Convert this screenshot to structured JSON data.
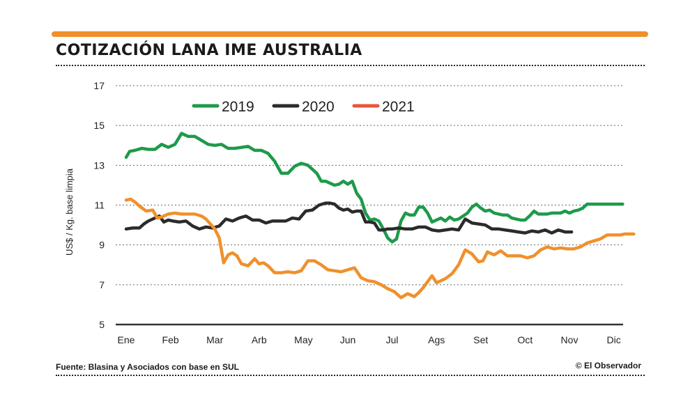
{
  "colors": {
    "accent": "#f0902c",
    "s2019": "#1e9a4a",
    "s2020": "#2b2b2b",
    "s2021": "#f0902c",
    "legend2021": "#e8553a"
  },
  "source": "Fuente: Blasina y Asociados con base en SUL",
  "credit": "© El Observador",
  "chart_data": {
    "type": "line",
    "title": "COTIZACIÓN LANA IME AUSTRALIA",
    "ylabel": "US$ / Kg. base limpia",
    "xlabel": "",
    "ylim": [
      5,
      17
    ],
    "xlim": [
      0,
      11.5
    ],
    "yticks": [
      5,
      7,
      9,
      11,
      13,
      15,
      17
    ],
    "months": [
      "Ene",
      "Feb",
      "Mar",
      "Arb",
      "May",
      "Jun",
      "Jul",
      "Ags",
      "Set",
      "Oct",
      "Nov",
      "Dic"
    ],
    "grid": true,
    "legend_position": "top-center",
    "series": [
      {
        "name": "2019",
        "color_key": "s2019",
        "legend_color_key": "s2019",
        "x": [
          0,
          0.08,
          0.2,
          0.35,
          0.5,
          0.65,
          0.8,
          0.95,
          1.1,
          1.25,
          1.4,
          1.55,
          1.7,
          1.85,
          2.0,
          2.15,
          2.3,
          2.45,
          2.6,
          2.75,
          2.9,
          3.05,
          3.2,
          3.35,
          3.5,
          3.65,
          3.8,
          3.95,
          4.1,
          4.2,
          4.3,
          4.4,
          4.5,
          4.6,
          4.7,
          4.8,
          4.9,
          5.0,
          5.1,
          5.2,
          5.3,
          5.4,
          5.5,
          5.6,
          5.7,
          5.8,
          5.9,
          6.0,
          6.1,
          6.2,
          6.3,
          6.4,
          6.5,
          6.6,
          6.7,
          6.8,
          6.9,
          7.0,
          7.1,
          7.2,
          7.3,
          7.4,
          7.5,
          7.6,
          7.7,
          7.8,
          7.9,
          8.0,
          8.1,
          8.2,
          8.3,
          8.4,
          8.5,
          8.6,
          8.7,
          8.8,
          8.9,
          9.0,
          9.1,
          9.2,
          9.3,
          9.4,
          9.5,
          9.6,
          9.7,
          9.8,
          9.9,
          10.0,
          10.1,
          10.2,
          10.3,
          10.4,
          10.5,
          10.6,
          10.7,
          10.8,
          10.9,
          11.0,
          11.1,
          11.2
        ],
        "values": [
          13.4,
          13.7,
          13.75,
          13.85,
          13.8,
          13.8,
          14.05,
          13.9,
          14.05,
          14.6,
          14.45,
          14.45,
          14.25,
          14.05,
          14.0,
          14.05,
          13.85,
          13.85,
          13.9,
          13.95,
          13.75,
          13.75,
          13.6,
          13.2,
          12.6,
          12.6,
          12.95,
          13.1,
          13.0,
          12.8,
          12.6,
          12.2,
          12.2,
          12.1,
          12.0,
          12.05,
          12.2,
          12.05,
          12.2,
          11.6,
          11.3,
          10.6,
          10.25,
          10.3,
          10.2,
          9.8,
          9.35,
          9.15,
          9.3,
          10.2,
          10.6,
          10.5,
          10.5,
          10.9,
          10.9,
          10.6,
          10.15,
          10.25,
          10.35,
          10.2,
          10.4,
          10.25,
          10.3,
          10.45,
          10.6,
          10.9,
          11.05,
          10.85,
          10.7,
          10.75,
          10.6,
          10.55,
          10.5,
          10.5,
          10.35,
          10.3,
          10.25,
          10.25,
          10.45,
          10.7,
          10.55,
          10.55,
          10.55,
          10.6,
          10.6,
          10.6,
          10.7,
          10.6,
          10.7,
          10.75,
          10.85,
          11.05,
          11.05,
          11.05,
          11.05,
          11.05,
          11.05,
          11.05,
          11.05,
          11.05
        ]
      },
      {
        "name": "2020",
        "color_key": "s2020",
        "legend_color_key": "s2020",
        "x": [
          0,
          0.15,
          0.3,
          0.4,
          0.5,
          0.6,
          0.75,
          0.85,
          0.95,
          1.05,
          1.2,
          1.35,
          1.5,
          1.65,
          1.8,
          1.95,
          2.1,
          2.25,
          2.4,
          2.55,
          2.7,
          2.85,
          3.0,
          3.15,
          3.3,
          3.45,
          3.6,
          3.75,
          3.9,
          4.05,
          4.2,
          4.35,
          4.5,
          4.6,
          4.7,
          4.8,
          4.9,
          5.0,
          5.1,
          5.2,
          5.3,
          5.4,
          5.5,
          5.6,
          5.7,
          5.8,
          5.9,
          6.0,
          6.15,
          6.3,
          6.45,
          6.6,
          6.75,
          6.9,
          7.05,
          7.2,
          7.35,
          7.5,
          7.65,
          7.8,
          7.95,
          8.1,
          8.25,
          8.4,
          8.55,
          8.7,
          8.85,
          9.0,
          9.15,
          9.3,
          9.45,
          9.6,
          9.75,
          9.9,
          10.05
        ],
        "values": [
          9.8,
          9.85,
          9.85,
          10.05,
          10.2,
          10.3,
          10.45,
          10.15,
          10.25,
          10.2,
          10.15,
          10.2,
          9.95,
          9.8,
          9.9,
          9.85,
          9.95,
          10.3,
          10.2,
          10.35,
          10.45,
          10.25,
          10.25,
          10.1,
          10.2,
          10.2,
          10.2,
          10.35,
          10.3,
          10.7,
          10.75,
          11.0,
          11.1,
          11.1,
          11.05,
          10.85,
          10.75,
          10.8,
          10.65,
          10.7,
          10.7,
          10.15,
          10.15,
          10.1,
          9.75,
          9.75,
          9.8,
          9.8,
          9.85,
          9.8,
          9.8,
          9.9,
          9.9,
          9.75,
          9.7,
          9.75,
          9.8,
          9.75,
          10.3,
          10.1,
          10.05,
          10.0,
          9.8,
          9.8,
          9.75,
          9.7,
          9.65,
          9.6,
          9.7,
          9.65,
          9.75,
          9.6,
          9.75,
          9.65,
          9.65
        ]
      },
      {
        "name": "2021",
        "color_key": "s2021",
        "legend_color_key": "legend2021",
        "x": [
          0,
          0.1,
          0.2,
          0.3,
          0.45,
          0.6,
          0.7,
          0.8,
          0.95,
          1.1,
          1.25,
          1.4,
          1.55,
          1.7,
          1.8,
          1.9,
          2.0,
          2.1,
          2.2,
          2.3,
          2.4,
          2.5,
          2.6,
          2.75,
          2.9,
          3.0,
          3.1,
          3.2,
          3.35,
          3.5,
          3.65,
          3.8,
          3.95,
          4.1,
          4.25,
          4.4,
          4.55,
          4.7,
          4.85,
          5.0,
          5.15,
          5.3,
          5.45,
          5.6,
          5.75,
          5.9,
          6.05,
          6.2,
          6.35,
          6.5,
          6.6,
          6.7,
          6.8,
          6.9,
          7.0,
          7.1,
          7.2,
          7.35,
          7.5,
          7.65,
          7.8,
          7.95,
          8.05,
          8.15,
          8.3,
          8.45,
          8.6,
          8.75,
          8.9,
          9.05,
          9.2,
          9.35,
          9.5,
          9.65,
          9.8,
          9.95,
          10.1,
          10.25,
          10.4,
          10.55,
          10.7,
          10.85,
          11.0,
          11.15,
          11.25,
          11.35,
          11.45
        ],
        "values": [
          11.25,
          11.3,
          11.15,
          10.95,
          10.7,
          10.75,
          10.35,
          10.4,
          10.55,
          10.6,
          10.55,
          10.55,
          10.55,
          10.45,
          10.3,
          10.05,
          9.8,
          9.35,
          8.1,
          8.5,
          8.6,
          8.45,
          8.05,
          7.95,
          8.3,
          8.05,
          8.1,
          7.95,
          7.6,
          7.6,
          7.65,
          7.6,
          7.7,
          8.2,
          8.2,
          8.0,
          7.75,
          7.7,
          7.65,
          7.75,
          7.85,
          7.35,
          7.2,
          7.15,
          7.0,
          6.8,
          6.65,
          6.35,
          6.55,
          6.4,
          6.6,
          6.85,
          7.15,
          7.45,
          7.1,
          7.2,
          7.3,
          7.55,
          8.0,
          8.75,
          8.55,
          8.15,
          8.2,
          8.65,
          8.5,
          8.7,
          8.45,
          8.45,
          8.45,
          8.35,
          8.45,
          8.75,
          8.9,
          8.8,
          8.85,
          8.8,
          8.8,
          8.9,
          9.1,
          9.2,
          9.3,
          9.5,
          9.5,
          9.5,
          9.55,
          9.55,
          9.55
        ]
      }
    ]
  }
}
